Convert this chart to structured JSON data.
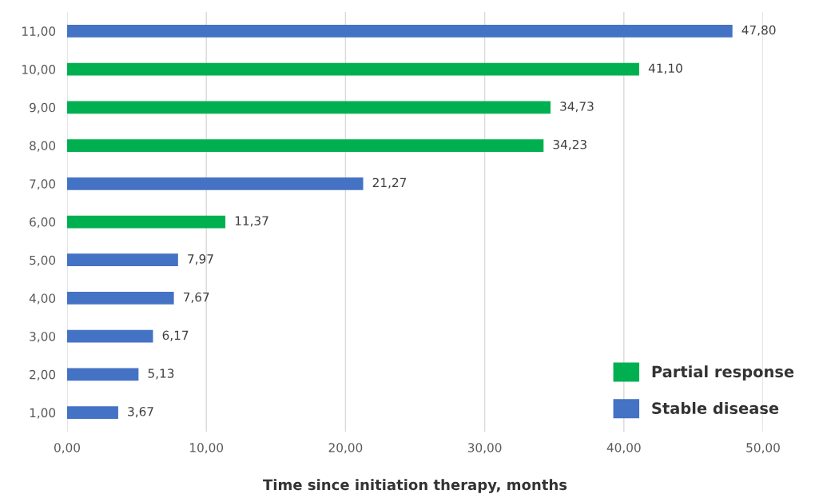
{
  "chart_data": {
    "type": "bar",
    "orientation": "horizontal",
    "xlabel": "Time since initiation therapy, months",
    "categories": [
      "11,00",
      "10,00",
      "9,00",
      "8,00",
      "7,00",
      "6,00",
      "5,00",
      "4,00",
      "3,00",
      "2,00",
      "1,00"
    ],
    "series": [
      {
        "name": "Partial response",
        "color": "#00b050",
        "values": [
          null,
          41.1,
          34.73,
          34.23,
          null,
          11.37,
          null,
          null,
          null,
          null,
          null
        ],
        "value_labels": [
          null,
          "41,10",
          "34,73",
          "34,23",
          null,
          "11,37",
          null,
          null,
          null,
          null,
          null
        ]
      },
      {
        "name": "Stable disease",
        "color": "#4472c4",
        "values": [
          47.8,
          null,
          null,
          null,
          21.27,
          null,
          7.97,
          7.67,
          6.17,
          5.13,
          3.67
        ],
        "value_labels": [
          "47,80",
          null,
          null,
          null,
          "21,27",
          null,
          "7,97",
          "7,67",
          "6,17",
          "5,13",
          "3,67"
        ]
      }
    ],
    "xlim": [
      0,
      50
    ],
    "xticks": [
      {
        "value": 0,
        "label": "0,00"
      },
      {
        "value": 10,
        "label": "10,00"
      },
      {
        "value": 20,
        "label": "20,00"
      },
      {
        "value": 30,
        "label": "30,00"
      },
      {
        "value": 40,
        "label": "40,00"
      },
      {
        "value": 50,
        "label": "50,00"
      }
    ],
    "grid": "x",
    "legend": "bottom right"
  }
}
